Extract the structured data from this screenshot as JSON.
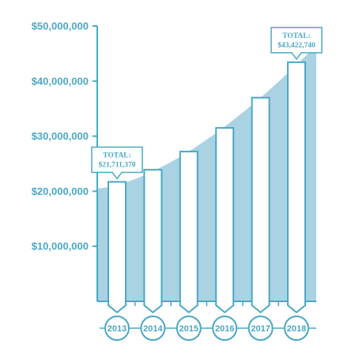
{
  "chart_data": {
    "type": "bar",
    "title": "",
    "xlabel": "",
    "ylabel": "",
    "categories": [
      "2013",
      "2014",
      "2015",
      "2016",
      "2017",
      "2018"
    ],
    "values": [
      21711370,
      23900000,
      27200000,
      31500000,
      37000000,
      43422740
    ],
    "ylim": [
      0,
      50000000
    ],
    "yticks": [
      {
        "value": 10000000,
        "label": "$10,000,000"
      },
      {
        "value": 20000000,
        "label": "$20,000,000"
      },
      {
        "value": 30000000,
        "label": "$30,000,000"
      },
      {
        "value": 40000000,
        "label": "$40,000,000"
      },
      {
        "value": 50000000,
        "label": "$50,000,000"
      }
    ],
    "area_trend": {
      "x": [
        "2013",
        "2018"
      ],
      "y": [
        20500000,
        46500000
      ]
    },
    "annotations": [
      {
        "category": "2013",
        "line1": "TOTAL:",
        "line2": "$21,711,370"
      },
      {
        "category": "2018",
        "line1": "TOTAL:",
        "line2": "$43,422,740"
      }
    ],
    "grid": false,
    "legend": "none"
  },
  "colors": {
    "accent": "#4aa8c4",
    "area": "#a9d3e2",
    "bar_fill": "#ffffff"
  }
}
